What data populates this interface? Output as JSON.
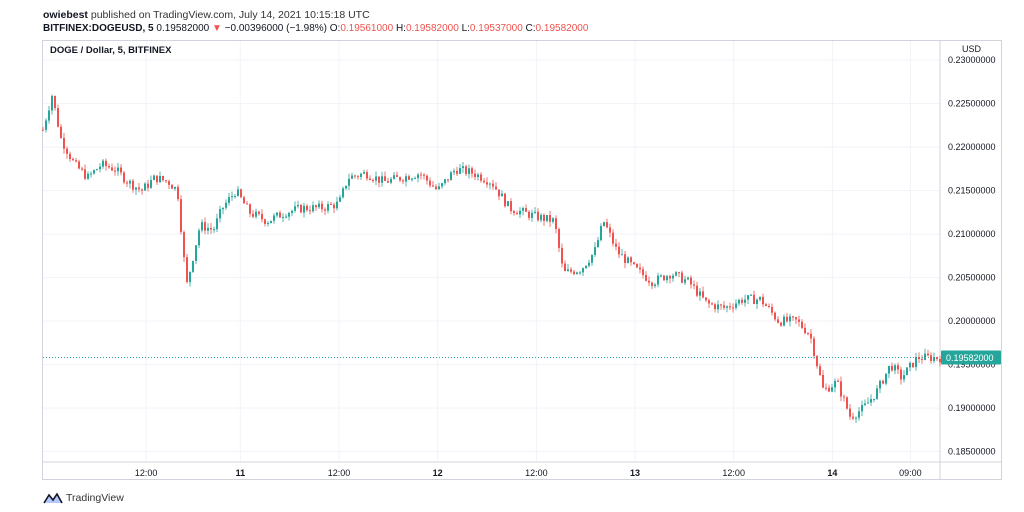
{
  "header": {
    "author": "owiebest",
    "published_text": "published on TradingView.com, July 14, 2021 10:15:18 UTC",
    "symbol": "BITFINEX:DOGEUSD, 5",
    "price": "0.19582000",
    "change_arrow": "▼",
    "change": "−0.00396000 (−1.98%)",
    "o_label": "O:",
    "o_value": "0.19561000",
    "h_label": "H:",
    "h_value": "0.19582000",
    "l_label": "L:",
    "l_value": "0.19537000",
    "c_label": "C:",
    "c_value": "0.19582000"
  },
  "chart_label": "DOGE / Dollar, 5, BITFINEX",
  "branding": {
    "name": "TradingView",
    "logo_icon": "tradingview-logo-icon"
  },
  "colors": {
    "up": "#26a69a",
    "down": "#ef5350",
    "last_price": "#26a69a",
    "grid": "#f0f3fa"
  },
  "chart_data": {
    "type": "candlestick",
    "title": "DOGE / Dollar, 5, BITFINEX",
    "currency_label": "USD",
    "y_ticks": [
      "0.23000000",
      "0.22500000",
      "0.22000000",
      "0.21500000",
      "0.21000000",
      "0.20500000",
      "0.20000000",
      "0.19500000",
      "0.19000000",
      "0.18500000"
    ],
    "ylim": [
      0.1838,
      0.2322
    ],
    "x_ticks": [
      "12:00",
      "11",
      "12:00",
      "12",
      "12:00",
      "13",
      "12:00",
      "14",
      "09:00"
    ],
    "x_ticks_pos": [
      0.115,
      0.22,
      0.33,
      0.44,
      0.55,
      0.66,
      0.77,
      0.88,
      0.967
    ],
    "last_price": "0.19582000",
    "last_price_value": 0.19582,
    "grid": true,
    "close_path": [
      [
        0.0,
        0.222
      ],
      [
        0.01,
        0.226
      ],
      [
        0.02,
        0.221
      ],
      [
        0.035,
        0.218
      ],
      [
        0.05,
        0.2165
      ],
      [
        0.065,
        0.218
      ],
      [
        0.08,
        0.2175
      ],
      [
        0.095,
        0.216
      ],
      [
        0.11,
        0.215
      ],
      [
        0.125,
        0.2165
      ],
      [
        0.14,
        0.216
      ],
      [
        0.15,
        0.215
      ],
      [
        0.16,
        0.204
      ],
      [
        0.175,
        0.211
      ],
      [
        0.19,
        0.2105
      ],
      [
        0.2,
        0.213
      ],
      [
        0.215,
        0.215
      ],
      [
        0.23,
        0.2125
      ],
      [
        0.25,
        0.2115
      ],
      [
        0.27,
        0.2125
      ],
      [
        0.29,
        0.213
      ],
      [
        0.31,
        0.213
      ],
      [
        0.33,
        0.2135
      ],
      [
        0.34,
        0.2165
      ],
      [
        0.36,
        0.217
      ],
      [
        0.38,
        0.216
      ],
      [
        0.4,
        0.2165
      ],
      [
        0.42,
        0.217
      ],
      [
        0.44,
        0.215
      ],
      [
        0.46,
        0.2175
      ],
      [
        0.48,
        0.217
      ],
      [
        0.5,
        0.216
      ],
      [
        0.52,
        0.213
      ],
      [
        0.55,
        0.212
      ],
      [
        0.57,
        0.2115
      ],
      [
        0.58,
        0.2055
      ],
      [
        0.6,
        0.206
      ],
      [
        0.615,
        0.208
      ],
      [
        0.625,
        0.2115
      ],
      [
        0.64,
        0.208
      ],
      [
        0.66,
        0.206
      ],
      [
        0.68,
        0.2045
      ],
      [
        0.7,
        0.2055
      ],
      [
        0.72,
        0.2045
      ],
      [
        0.74,
        0.202
      ],
      [
        0.76,
        0.2015
      ],
      [
        0.78,
        0.2025
      ],
      [
        0.8,
        0.2025
      ],
      [
        0.82,
        0.2
      ],
      [
        0.84,
        0.2
      ],
      [
        0.855,
        0.1985
      ],
      [
        0.87,
        0.192
      ],
      [
        0.885,
        0.193
      ],
      [
        0.9,
        0.189
      ],
      [
        0.915,
        0.19
      ],
      [
        0.93,
        0.192
      ],
      [
        0.945,
        0.195
      ],
      [
        0.957,
        0.1935
      ],
      [
        0.975,
        0.1958
      ]
    ]
  }
}
